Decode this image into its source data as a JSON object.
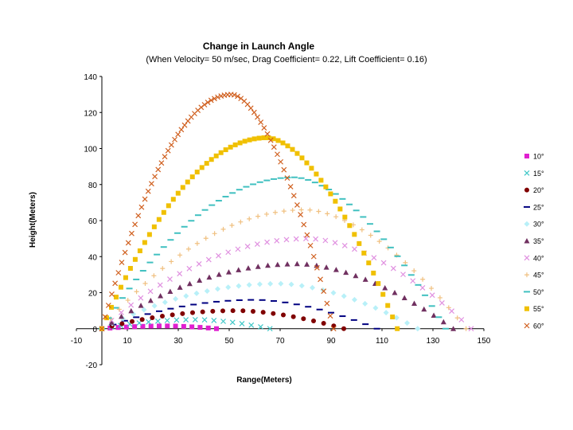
{
  "chart_data": {
    "type": "scatter",
    "title": "Change in Launch Angle",
    "subtitle": "(When Velocity= 50 m/sec, Drag Coefficient= 0.22, Lift Coefficient= 0.16)",
    "xlabel": "Range(Meters)",
    "ylabel": "Height(Meters)",
    "xlim": [
      -10,
      150
    ],
    "ylim": [
      -20,
      140
    ],
    "xticks": [
      "-10",
      "10",
      "30",
      "50",
      "70",
      "90",
      "110",
      "130",
      "150"
    ],
    "yticks": [
      "-20",
      "0",
      "20",
      "40",
      "60",
      "80",
      "100",
      "120",
      "140"
    ],
    "grid": false,
    "legend_position": "right",
    "series": [
      {
        "name": "10°",
        "color": "#e020d0",
        "marker": "square",
        "range": 45,
        "peak": 1.5,
        "n": 14
      },
      {
        "name": "15°",
        "color": "#40c8c8",
        "marker": "x",
        "range": 66,
        "peak": 5,
        "n": 18
      },
      {
        "name": "20°",
        "color": "#800000",
        "marker": "circle",
        "range": 95,
        "peak": 10,
        "n": 24
      },
      {
        "name": "25°",
        "color": "#000080",
        "marker": "dash",
        "range": 108,
        "peak": 16,
        "n": 24
      },
      {
        "name": "30°",
        "color": "#b8f0f8",
        "marker": "diamond",
        "range": 124,
        "peak": 25,
        "n": 30
      },
      {
        "name": "35°",
        "color": "#703060",
        "marker": "triangle",
        "range": 138,
        "peak": 36,
        "n": 36
      },
      {
        "name": "40°",
        "color": "#e090e0",
        "marker": "x",
        "range": 145,
        "peak": 50,
        "n": 38
      },
      {
        "name": "45°",
        "color": "#f0c080",
        "marker": "plus",
        "range": 143,
        "peak": 66,
        "n": 42
      },
      {
        "name": "50°",
        "color": "#40c0c0",
        "marker": "dash",
        "range": 135,
        "peak": 84,
        "n": 50
      },
      {
        "name": "55°",
        "color": "#f0c000",
        "marker": "square",
        "range": 116,
        "peak": 106,
        "n": 62
      },
      {
        "name": "60°",
        "color": "#d06020",
        "marker": "x",
        "range": 91,
        "peak": 130,
        "n": 70
      }
    ]
  }
}
